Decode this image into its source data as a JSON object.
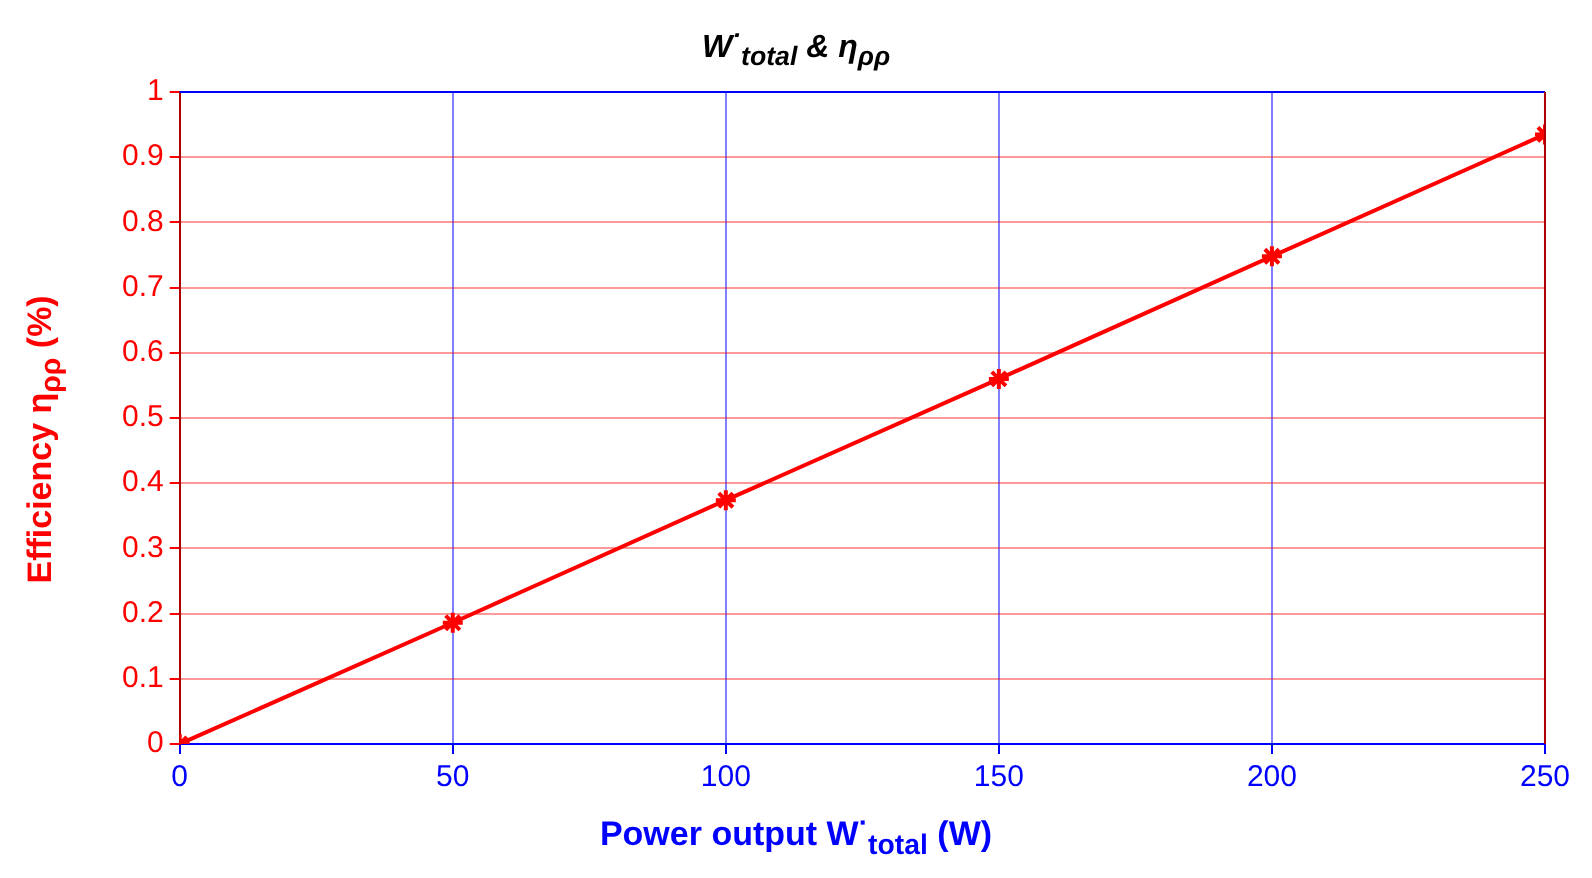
{
  "chart_data": {
    "type": "line",
    "title": "W$^{·}$$_{total}$ & η$_{ρρ}$",
    "xlabel": "Power output W$^{·}$$_{total}$  (W)",
    "ylabel": "Efficiency η$_{ρρ}$  (%)",
    "x": [
      0,
      50,
      100,
      150,
      200,
      250
    ],
    "series": [
      {
        "color": "#ff0000",
        "values": [
          0,
          0.186,
          0.374,
          0.56,
          0.748,
          0.935
        ]
      }
    ],
    "xlim": [
      0,
      250
    ],
    "xticks": [
      0,
      50,
      100,
      150,
      200,
      250
    ],
    "ylim": [
      0,
      1
    ],
    "yticks": [
      0,
      0.1,
      0.2,
      0.3,
      0.4,
      0.5,
      0.6,
      0.7,
      0.8,
      0.9,
      1
    ],
    "grid": true,
    "legend": false,
    "marker": "cross",
    "line_style": "solid"
  }
}
